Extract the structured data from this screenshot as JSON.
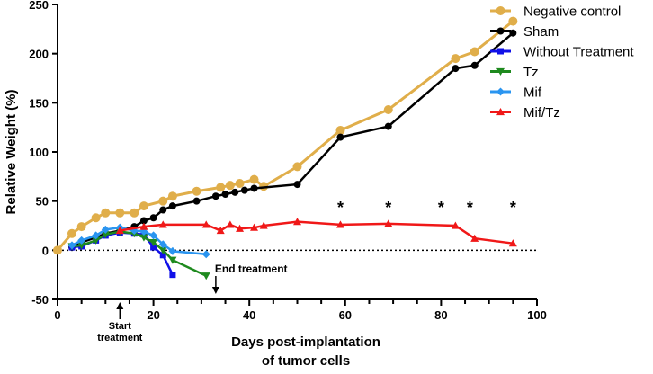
{
  "chart_data": {
    "type": "line",
    "title": "",
    "xlabel": "Days post-implantation of tumor cells",
    "xlabel_lines": [
      "Days post-implantation",
      "of tumor cells"
    ],
    "ylabel": "Relative Weight (%)",
    "xlim": [
      0,
      100
    ],
    "ylim": [
      -50,
      250
    ],
    "xticks": [
      0,
      20,
      40,
      60,
      80,
      100
    ],
    "yticks": [
      -50,
      0,
      50,
      100,
      150,
      200,
      250
    ],
    "legend_position": "top-right",
    "series": [
      {
        "name": "Negative control",
        "color": "#E0AE4A",
        "marker": "circle",
        "x": [
          0,
          3,
          5,
          8,
          10,
          13,
          16,
          18,
          22,
          24,
          29,
          34,
          36,
          38,
          41,
          43,
          50,
          59,
          69,
          83,
          87,
          95
        ],
        "y": [
          0,
          17,
          24,
          33,
          38,
          38,
          38,
          45,
          50,
          55,
          60,
          64,
          66,
          68,
          72,
          65,
          85,
          122,
          143,
          195,
          202,
          233
        ]
      },
      {
        "name": "Sham",
        "color": "#000000",
        "marker": "circle-small",
        "x": [
          3,
          5,
          8,
          10,
          13,
          16,
          18,
          20,
          22,
          24,
          29,
          33,
          35,
          37,
          39,
          41,
          50,
          59,
          69,
          83,
          87,
          95
        ],
        "y": [
          3,
          8,
          13,
          17,
          20,
          24,
          30,
          33,
          41,
          45,
          50,
          55,
          57,
          59,
          61,
          63,
          67,
          115,
          126,
          185,
          188,
          221
        ]
      },
      {
        "name": "Without Treatment",
        "color": "#1010E8",
        "marker": "square",
        "x": [
          3,
          5,
          8,
          10,
          13,
          16,
          18,
          20,
          22,
          24
        ],
        "y": [
          3,
          4,
          10,
          15,
          18,
          17,
          16,
          3,
          -5,
          -25
        ]
      },
      {
        "name": "Tz",
        "color": "#1E8A1E",
        "marker": "triangle-down",
        "x": [
          3,
          5,
          8,
          10,
          13,
          16,
          18,
          20,
          22,
          24,
          31
        ],
        "y": [
          4,
          5,
          10,
          16,
          19,
          17,
          13,
          8,
          0,
          -10,
          -26
        ]
      },
      {
        "name": "Mif",
        "color": "#2A95F0",
        "marker": "diamond",
        "x": [
          3,
          5,
          8,
          10,
          13,
          16,
          18,
          20,
          22,
          24,
          31
        ],
        "y": [
          5,
          10,
          15,
          21,
          23,
          20,
          19,
          15,
          6,
          -1,
          -4
        ]
      },
      {
        "name": "Mif/Tz",
        "color": "#F01818",
        "marker": "triangle-up",
        "x": [
          13,
          18,
          22,
          31,
          34,
          36,
          38,
          41,
          43,
          50,
          59,
          69,
          83,
          87,
          95
        ],
        "y": [
          20,
          24,
          26,
          26,
          20,
          26,
          22,
          23,
          25,
          29,
          26,
          27,
          25,
          12,
          7
        ]
      }
    ],
    "significance_markers": {
      "symbol": "*",
      "x": [
        59,
        69,
        80,
        86,
        95
      ],
      "y": 45
    },
    "annotations": [
      {
        "text_lines": [
          "Start",
          "treatment"
        ],
        "x": 13,
        "arrow": "up"
      },
      {
        "text_lines": [
          "End treatment"
        ],
        "x": 33,
        "arrow": "down"
      }
    ],
    "reference_line": {
      "y": 0,
      "style": "dotted"
    }
  }
}
